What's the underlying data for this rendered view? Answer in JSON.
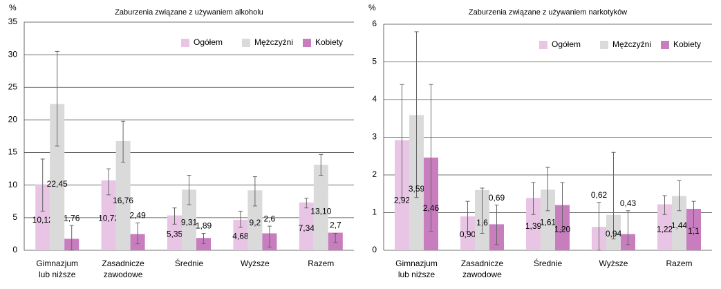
{
  "chart_data": [
    {
      "type": "bar",
      "title": "Zaburzenia związane z używaniem alkoholu",
      "unit": "%",
      "categories": [
        "Gimnazjum lub niższe",
        "Zasadnicze zawodowe",
        "Średnie",
        "Wyższe",
        "Razem"
      ],
      "series": [
        {
          "name": "Ogółem",
          "color": "#e8c5e4",
          "values": [
            10.12,
            10.72,
            5.35,
            4.68,
            7.34
          ],
          "value_labels": [
            "10,12",
            "10,72",
            "5,35",
            "4,68",
            "7,34"
          ],
          "error_low": [
            6,
            8.5,
            4,
            3.5,
            6.5
          ],
          "error_high": [
            14,
            12.5,
            6.5,
            6,
            8
          ]
        },
        {
          "name": "Mężczyźni",
          "color": "#dadada",
          "values": [
            22.45,
            16.76,
            9.31,
            9.2,
            13.1
          ],
          "value_labels": [
            "22,45",
            "16,76",
            "9,31",
            "9,2",
            "13,10"
          ],
          "error_low": [
            16,
            13.5,
            7,
            6.8,
            11.5
          ],
          "error_high": [
            30.5,
            19.8,
            11.5,
            11.3,
            14.7
          ]
        },
        {
          "name": "Kobiety",
          "color": "#c77dbe",
          "values": [
            1.76,
            2.49,
            1.89,
            2.6,
            2.7
          ],
          "value_labels": [
            "1,76",
            "2,49",
            "1,89",
            "2,6",
            "2,7"
          ],
          "error_low": [
            0,
            1,
            1,
            0.5,
            1.2
          ],
          "error_high": [
            3.8,
            4.2,
            2.6,
            3.7,
            2.6
          ]
        }
      ],
      "ylim": [
        0,
        35
      ],
      "yticks": [
        0,
        5,
        10,
        15,
        20,
        25,
        30,
        35
      ],
      "grid": true,
      "legend": "top-right"
    },
    {
      "type": "bar",
      "title": "Zaburzenia związane z używaniem narkotyków",
      "unit": "%",
      "categories": [
        "Gimnazjum lub niższe",
        "Zasadnicze zawodowe",
        "Średnie",
        "Wyższe",
        "Razem"
      ],
      "series": [
        {
          "name": "Ogółem",
          "color": "#e8c5e4",
          "values": [
            2.92,
            0.9,
            1.39,
            0.62,
            1.22
          ],
          "value_labels": [
            "2,92",
            "0,90",
            "1,39",
            "0,62",
            "1,22"
          ],
          "error_low": [
            1.4,
            0.5,
            0.95,
            0,
            0.95
          ],
          "error_high": [
            4.4,
            1.3,
            1.8,
            1.27,
            1.45
          ]
        },
        {
          "name": "Mężczyźni",
          "color": "#dadada",
          "values": [
            3.59,
            1.6,
            1.61,
            0.94,
            1.44
          ],
          "value_labels": [
            "3,59",
            "1,6",
            "1,61",
            "0,94",
            "1,44"
          ],
          "error_low": [
            1.4,
            0.45,
            1.05,
            0.3,
            1.05
          ],
          "error_high": [
            5.8,
            1.65,
            2.2,
            2.6,
            1.85
          ]
        },
        {
          "name": "Kobiety",
          "color": "#c77dbe",
          "values": [
            2.46,
            0.69,
            1.2,
            0.43,
            1.1
          ],
          "value_labels": [
            "2,46",
            "0,69",
            "1,20",
            "0,43",
            "1,1"
          ],
          "error_low": [
            0.5,
            0.15,
            0.55,
            0.15,
            0.6
          ],
          "error_high": [
            4.4,
            1.2,
            1.8,
            1.05,
            1.3
          ]
        }
      ],
      "ylim": [
        0,
        6
      ],
      "yticks": [
        0,
        1,
        2,
        3,
        4,
        5,
        6
      ],
      "grid": true,
      "legend": "top-right"
    }
  ]
}
